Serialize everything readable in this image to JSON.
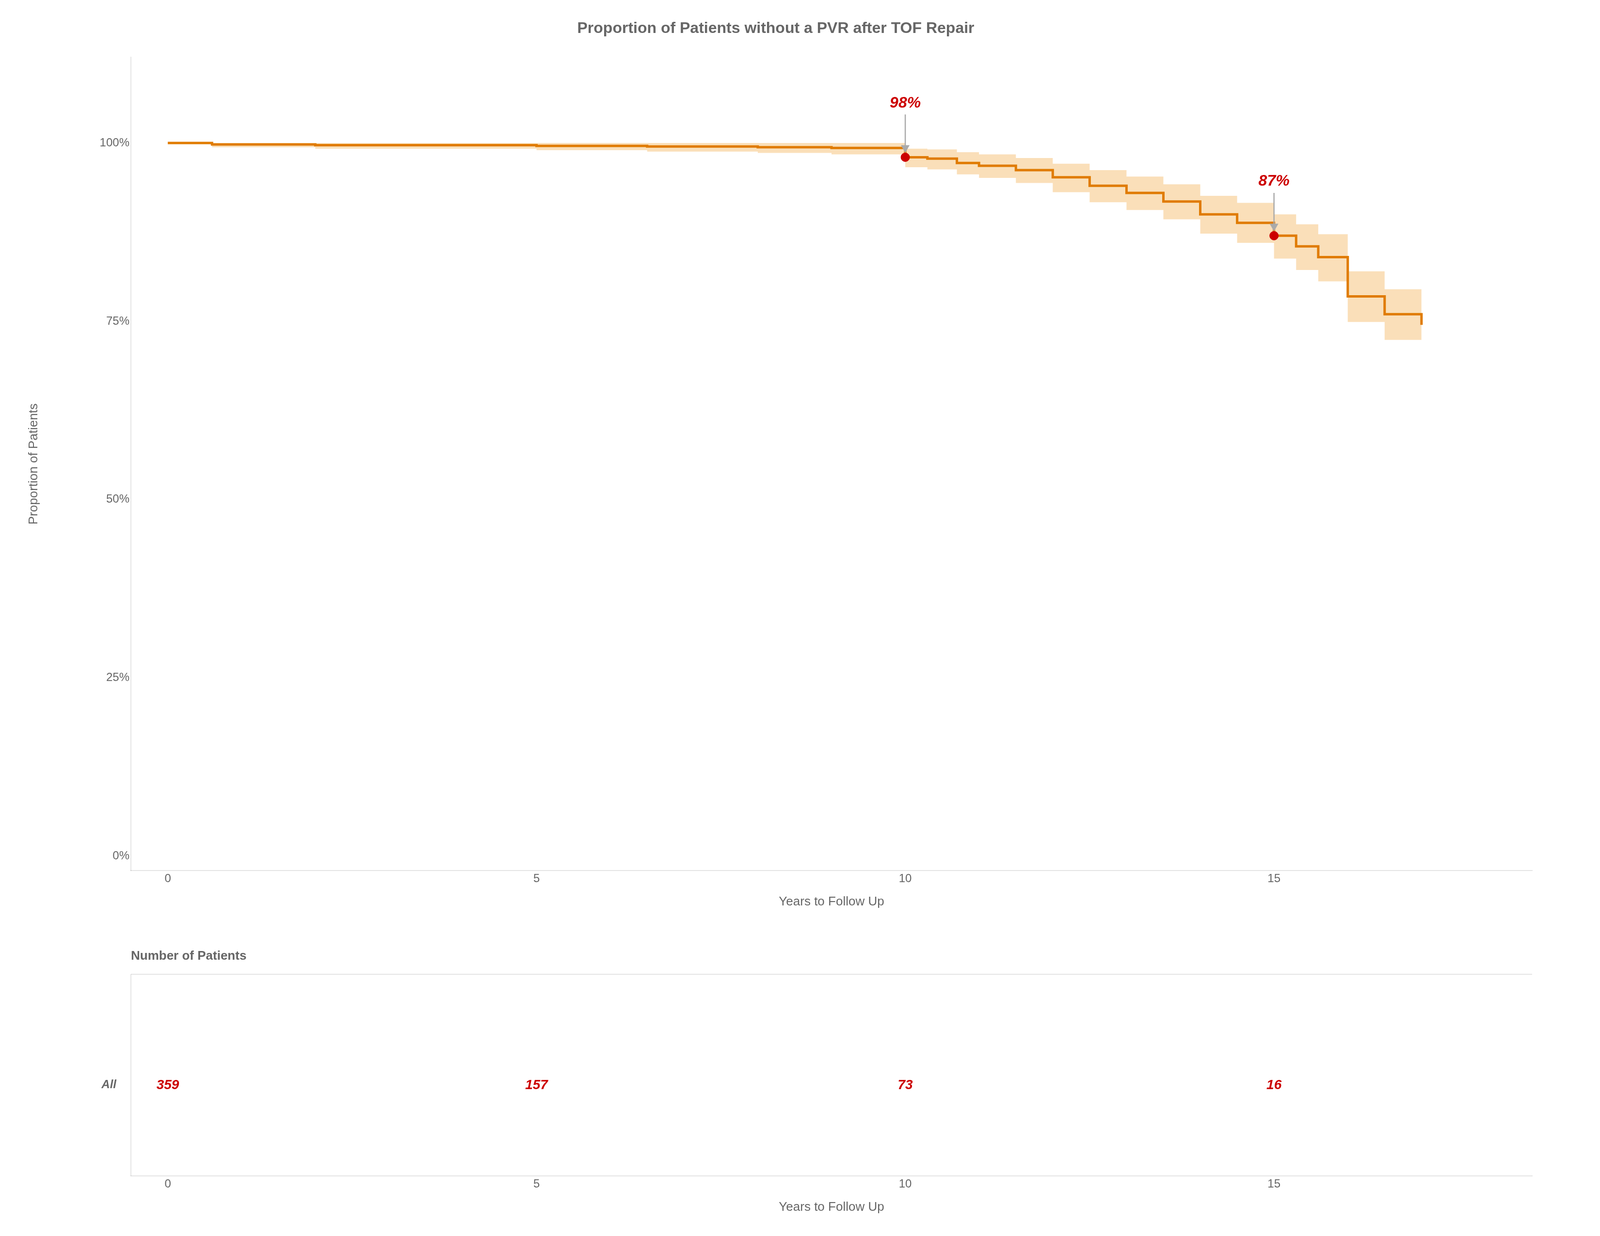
{
  "chart_data": [
    {
      "type": "line",
      "title": "Proportion of Patients without a PVR after TOF Repair",
      "xlabel": "Years to Follow Up",
      "ylabel": "Proportion of Patients",
      "x": [
        0,
        0.3,
        0.6,
        1.0,
        1.5,
        2.0,
        2.5,
        3.0,
        3.5,
        4.0,
        4.5,
        5.0,
        5.5,
        6.0,
        6.5,
        7.0,
        7.5,
        8.0,
        8.5,
        9.0,
        9.5,
        10.0,
        10.3,
        10.7,
        11.0,
        11.5,
        12.0,
        12.5,
        13.0,
        13.5,
        14.0,
        14.5,
        15.0,
        15.3,
        15.6,
        16.0,
        16.5,
        17.0
      ],
      "series": [
        {
          "type": "band",
          "color": "#f5c480",
          "upper": [
            1.0,
            1.0,
            1.0,
            1.0,
            1.0,
            1.0,
            1.0,
            1.0,
            1.0,
            1.0,
            1.0,
            1.0,
            1.0,
            1.0,
            1.0,
            1.0,
            1.0,
            1.0,
            1.0,
            1.0,
            1.0,
            0.992,
            0.991,
            0.987,
            0.984,
            0.979,
            0.971,
            0.962,
            0.953,
            0.942,
            0.926,
            0.916,
            0.9,
            0.886,
            0.872,
            0.82,
            0.795,
            0.78
          ],
          "lower": [
            1.0,
            1.0,
            0.994,
            0.994,
            0.994,
            0.992,
            0.992,
            0.992,
            0.992,
            0.992,
            0.992,
            0.99,
            0.99,
            0.99,
            0.988,
            0.988,
            0.988,
            0.986,
            0.986,
            0.984,
            0.984,
            0.966,
            0.963,
            0.956,
            0.951,
            0.944,
            0.931,
            0.917,
            0.906,
            0.893,
            0.873,
            0.86,
            0.838,
            0.822,
            0.806,
            0.749,
            0.724,
            0.71
          ]
        },
        {
          "type": "line",
          "line_style": "step",
          "color": "#e07b00",
          "values": [
            1.0,
            1.0,
            0.998,
            0.998,
            0.998,
            0.997,
            0.997,
            0.997,
            0.997,
            0.997,
            0.997,
            0.996,
            0.996,
            0.996,
            0.995,
            0.995,
            0.995,
            0.994,
            0.994,
            0.993,
            0.993,
            0.98,
            0.978,
            0.972,
            0.968,
            0.962,
            0.952,
            0.94,
            0.93,
            0.918,
            0.9,
            0.888,
            0.87,
            0.855,
            0.84,
            0.785,
            0.76,
            0.745
          ]
        }
      ],
      "annotations": [
        {
          "x": 10.0,
          "y": 0.98,
          "label": "98%",
          "color": "#cc0000"
        },
        {
          "x": 15.0,
          "y": 0.87,
          "label": "87%",
          "color": "#cc0000"
        }
      ],
      "xlim": [
        -0.5,
        18.5
      ],
      "ylim": [
        -0.02,
        1.12
      ],
      "xticks": [
        0,
        5,
        10,
        15
      ],
      "yticks": [
        {
          "value": 0,
          "label": "0%"
        },
        {
          "value": 0.25,
          "label": "25%"
        },
        {
          "value": 0.5,
          "label": "50%"
        },
        {
          "value": 0.75,
          "label": "75%"
        },
        {
          "value": 1.0,
          "label": "100%"
        }
      ],
      "grid": false
    },
    {
      "type": "table",
      "title": "Number of Patients",
      "xlabel": "Years to Follow Up",
      "x": [
        0,
        5,
        10,
        15
      ],
      "series": [
        {
          "name": "All",
          "values": [
            359,
            157,
            73,
            16
          ],
          "color": "#cc0000"
        }
      ],
      "xlim": [
        -0.5,
        18.5
      ],
      "xticks": [
        0,
        5,
        10,
        15
      ],
      "data_labels": true,
      "grid": false
    }
  ]
}
